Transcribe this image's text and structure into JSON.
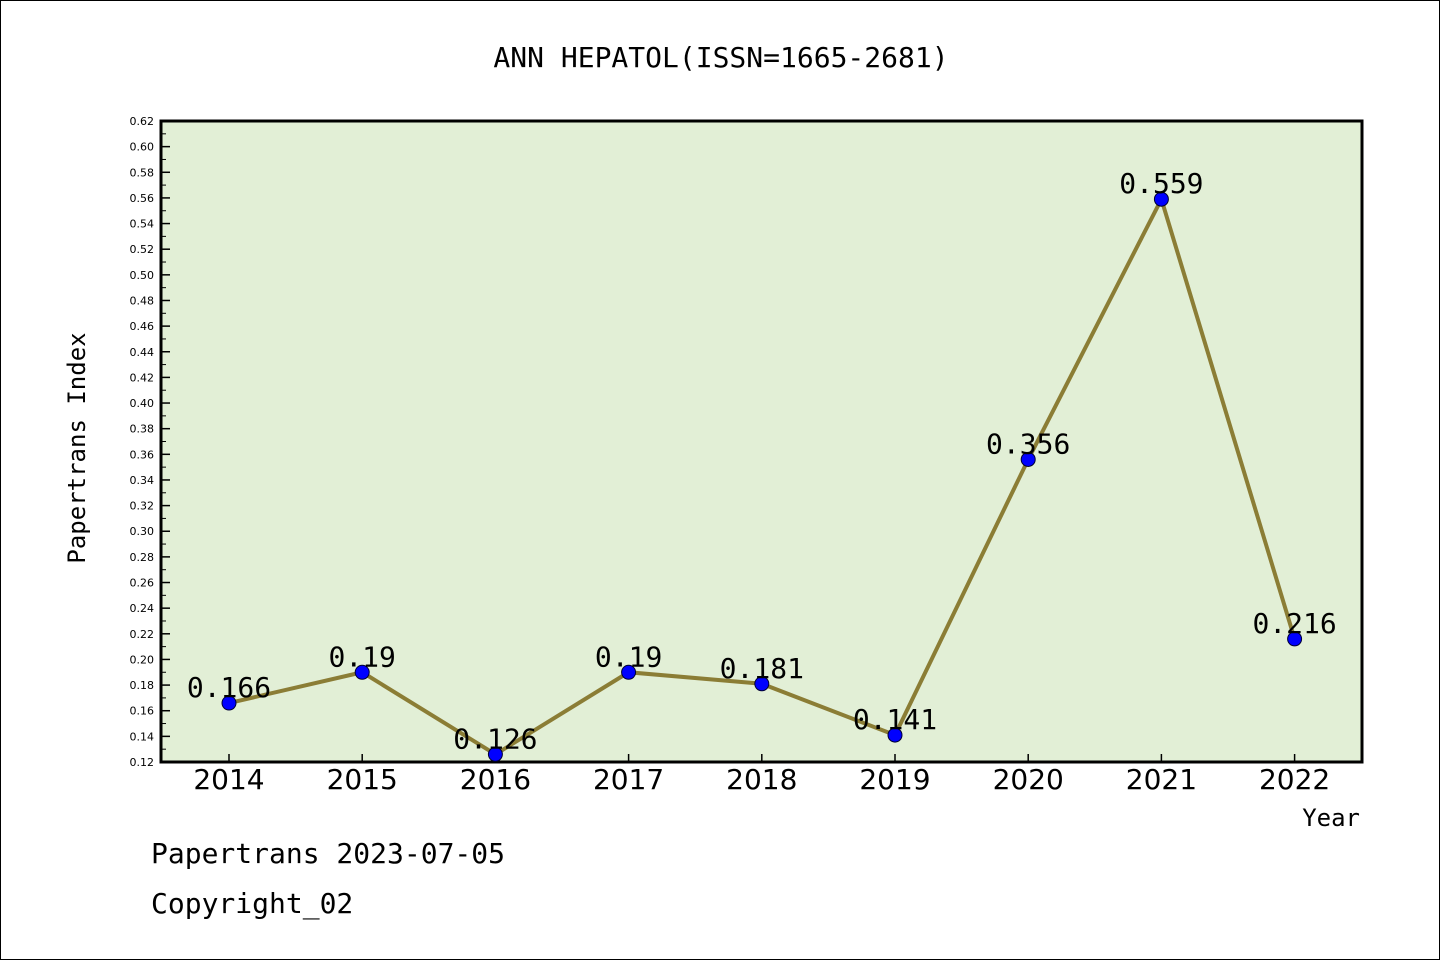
{
  "chart_data": {
    "type": "line",
    "title": "ANN HEPATOL(ISSN=1665-2681)",
    "xlabel": "Year",
    "ylabel": "Papertrans Index",
    "categories": [
      "2014",
      "2015",
      "2016",
      "2017",
      "2018",
      "2019",
      "2020",
      "2021",
      "2022"
    ],
    "series": [
      {
        "values": [
          0.166,
          0.19,
          0.126,
          0.19,
          0.181,
          0.141,
          0.356,
          0.559,
          0.216
        ]
      }
    ],
    "data_labels": [
      "0.166",
      "0.19",
      "0.126",
      "0.19",
      "0.181",
      "0.141",
      "0.356",
      "0.559",
      "0.216"
    ],
    "ylim": [
      0.12,
      0.62
    ],
    "yticks": [
      "0.12",
      "0.14",
      "0.16",
      "0.18",
      "0.20",
      "0.22",
      "0.24",
      "0.26",
      "0.28",
      "0.30",
      "0.32",
      "0.34",
      "0.36",
      "0.38",
      "0.40",
      "0.42",
      "0.44",
      "0.46",
      "0.48",
      "0.50",
      "0.52",
      "0.54",
      "0.56",
      "0.58",
      "0.60",
      "0.62"
    ],
    "grid": false,
    "colors": {
      "plot_background": "#e2efd6",
      "line": "#8b7d35",
      "marker": "#0000ff"
    }
  },
  "footer": {
    "line1": "Papertrans 2023-07-05",
    "line2": "Copyright_02"
  }
}
